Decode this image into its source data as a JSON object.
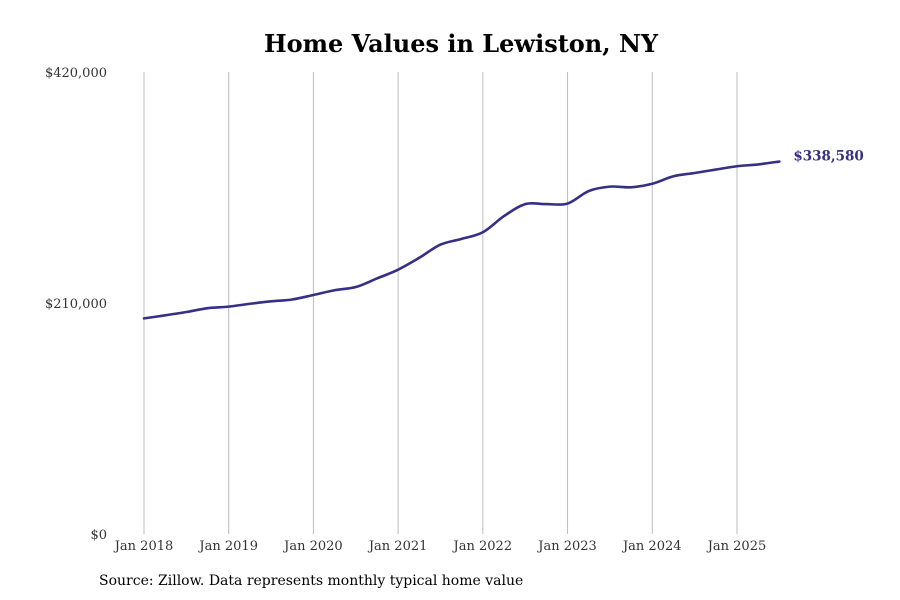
{
  "chart_data": {
    "type": "line",
    "title": "Home Values in Lewiston, NY",
    "xlabel": "",
    "ylabel": "",
    "ylim": [
      0,
      420000
    ],
    "y_ticks": [
      {
        "value": 0,
        "label": "$0"
      },
      {
        "value": 210000,
        "label": "$210,000"
      },
      {
        "value": 420000,
        "label": "$420,000"
      }
    ],
    "x_range": [
      "2018-01",
      "2025-07"
    ],
    "x_ticks": [
      {
        "date": "2018-01",
        "label": "Jan 2018"
      },
      {
        "date": "2019-01",
        "label": "Jan 2019"
      },
      {
        "date": "2020-01",
        "label": "Jan 2020"
      },
      {
        "date": "2021-01",
        "label": "Jan 2021"
      },
      {
        "date": "2022-01",
        "label": "Jan 2022"
      },
      {
        "date": "2023-01",
        "label": "Jan 2023"
      },
      {
        "date": "2024-01",
        "label": "Jan 2024"
      },
      {
        "date": "2025-01",
        "label": "Jan 2025"
      }
    ],
    "grid": {
      "vertical": true,
      "horizontal": false
    },
    "end_label": "$338,580",
    "series": [
      {
        "color": "#352F85",
        "points": [
          {
            "x": "2018-01",
            "y": 196000
          },
          {
            "x": "2018-04",
            "y": 198800
          },
          {
            "x": "2018-07",
            "y": 201800
          },
          {
            "x": "2018-10",
            "y": 205300
          },
          {
            "x": "2019-01",
            "y": 206700
          },
          {
            "x": "2019-04",
            "y": 209300
          },
          {
            "x": "2019-07",
            "y": 211500
          },
          {
            "x": "2019-10",
            "y": 213200
          },
          {
            "x": "2020-01",
            "y": 217300
          },
          {
            "x": "2020-04",
            "y": 221600
          },
          {
            "x": "2020-07",
            "y": 224500
          },
          {
            "x": "2020-10",
            "y": 232300
          },
          {
            "x": "2021-01",
            "y": 240300
          },
          {
            "x": "2021-04",
            "y": 251100
          },
          {
            "x": "2021-07",
            "y": 263100
          },
          {
            "x": "2021-10",
            "y": 268300
          },
          {
            "x": "2022-01",
            "y": 274300
          },
          {
            "x": "2022-04",
            "y": 289000
          },
          {
            "x": "2022-07",
            "y": 299900
          },
          {
            "x": "2022-10",
            "y": 299900
          },
          {
            "x": "2023-01",
            "y": 300400
          },
          {
            "x": "2023-04",
            "y": 311800
          },
          {
            "x": "2023-07",
            "y": 315800
          },
          {
            "x": "2023-10",
            "y": 315200
          },
          {
            "x": "2024-01",
            "y": 318400
          },
          {
            "x": "2024-04",
            "y": 325200
          },
          {
            "x": "2024-07",
            "y": 328200
          },
          {
            "x": "2024-10",
            "y": 331300
          },
          {
            "x": "2025-01",
            "y": 334300
          },
          {
            "x": "2025-04",
            "y": 336000
          },
          {
            "x": "2025-07",
            "y": 338580
          }
        ]
      }
    ]
  },
  "source_note": "Source: Zillow. Data represents monthly typical home value"
}
